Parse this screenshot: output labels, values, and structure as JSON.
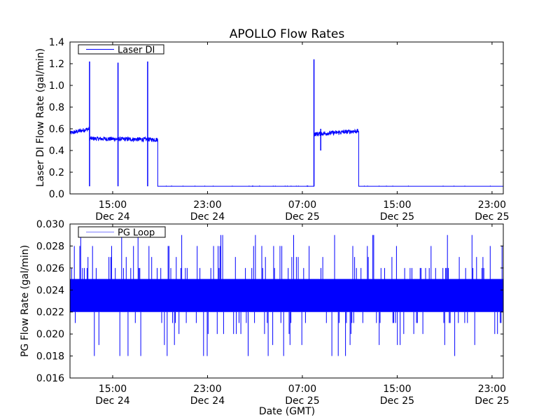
{
  "title": "APOLLO Flow Rates",
  "xlabel": "Date (GMT)",
  "colors": {
    "line": "#0000ff",
    "axes": "#000000",
    "legend_line": "#7f7fff"
  },
  "chart_data": [
    {
      "type": "line",
      "ylabel": "Laser DI Flow Rate (gal/min)",
      "legend": {
        "label": "Laser DI",
        "placement": "top-left"
      },
      "xlim_hours": [
        11.4,
        47.95
      ],
      "ylim": [
        0.0,
        1.4
      ],
      "yticks": [
        "0.0",
        "0.2",
        "0.4",
        "0.6",
        "0.8",
        "1.0",
        "1.2",
        "1.4"
      ],
      "xticks": [
        {
          "hour": 15,
          "time": "15:00",
          "date": "Dec 24"
        },
        {
          "hour": 23,
          "time": "23:00",
          "date": "Dec 24"
        },
        {
          "hour": 31,
          "time": "07:00",
          "date": "Dec 25"
        },
        {
          "hour": 39,
          "time": "15:00",
          "date": "Dec 25"
        },
        {
          "hour": 47,
          "time": "23:00",
          "date": "Dec 25"
        }
      ],
      "segments": [
        {
          "start": 11.4,
          "end": 13.05,
          "from": 0.56,
          "to": 0.6,
          "noise": 0.02
        },
        {
          "start": 13.05,
          "end": 18.8,
          "from": 0.51,
          "to": 0.5,
          "noise": 0.02
        },
        {
          "start": 18.8,
          "end": 31.98,
          "from": 0.07,
          "to": 0.07,
          "noise": 0.0
        },
        {
          "start": 31.98,
          "end": 35.75,
          "from": 0.55,
          "to": 0.58,
          "noise": 0.02
        },
        {
          "start": 35.75,
          "end": 47.95,
          "from": 0.07,
          "to": 0.07,
          "noise": 0.0
        }
      ],
      "spikes": [
        {
          "hour": 13.05,
          "high": 1.22,
          "low": 0.07
        },
        {
          "hour": 15.45,
          "high": 1.21,
          "low": 0.07
        },
        {
          "hour": 17.95,
          "high": 1.22,
          "low": 0.07
        },
        {
          "hour": 31.98,
          "high": 1.24,
          "low": 0.07
        },
        {
          "hour": 32.55,
          "high": 0.6,
          "low": 0.4
        }
      ]
    },
    {
      "type": "line",
      "ylabel": "PG Flow Rate (gal/min)",
      "legend": {
        "label": "PG Loop",
        "placement": "top-left"
      },
      "xlim_hours": [
        11.4,
        47.95
      ],
      "ylim": [
        0.016,
        0.03
      ],
      "yticks": [
        "0.016",
        "0.018",
        "0.020",
        "0.022",
        "0.024",
        "0.026",
        "0.028",
        "0.030"
      ],
      "xticks": [
        {
          "hour": 15,
          "time": "15:00",
          "date": "Dec 24"
        },
        {
          "hour": 23,
          "time": "23:00",
          "date": "Dec 24"
        },
        {
          "hour": 31,
          "time": "07:00",
          "date": "Dec 25"
        },
        {
          "hour": 39,
          "time": "15:00",
          "date": "Dec 25"
        },
        {
          "hour": 47,
          "time": "23:00",
          "date": "Dec 25"
        }
      ],
      "band": [
        0.022,
        0.025
      ],
      "spike_range": [
        0.017,
        0.029
      ],
      "spike_step": 0.001
    }
  ]
}
